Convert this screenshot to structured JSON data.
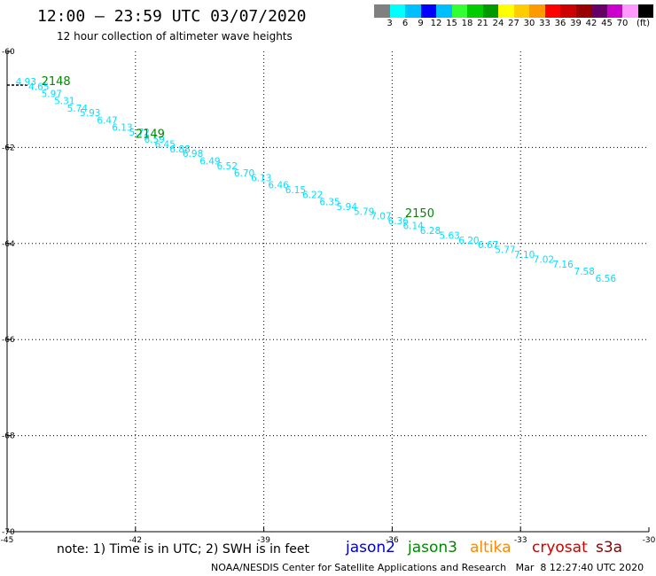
{
  "title": "12:00 – 23:59 UTC 03/07/2020",
  "subtitle": "12 hour collection of altimeter wave heights",
  "colorbar": {
    "colors": [
      "#808080",
      "#00ffff",
      "#00bfff",
      "#0000ff",
      "#00bfff",
      "#33ff33",
      "#00cc00",
      "#009900",
      "#ffff00",
      "#ffcc00",
      "#ff9900",
      "#ff0000",
      "#cc0000",
      "#990000",
      "#660066",
      "#cc00cc",
      "#ff99ff",
      "#000000"
    ],
    "labels": [
      "3",
      "6",
      "9",
      "12",
      "15",
      "18",
      "21",
      "24",
      "27",
      "30",
      "33",
      "36",
      "39",
      "42",
      "45",
      "70",
      "(ft)"
    ]
  },
  "note": "note: 1) Time is in UTC; 2) SWH is in feet",
  "legend": [
    {
      "label": "jason2",
      "color": "#0000cc"
    },
    {
      "label": "jason3",
      "color": "#008800"
    },
    {
      "label": "altika",
      "color": "#ff8800"
    },
    {
      "label": "cryosat",
      "color": "#cc0000"
    },
    {
      "label": "s3a",
      "color": "#880000"
    }
  ],
  "footer": "NOAA/NESDIS Center for Satellite Applications and Research   Mar  8 12:27:40 UTC 2020",
  "chart_data": {
    "type": "scatter",
    "xlim": [
      -45,
      -30
    ],
    "ylim": [
      -70,
      -60
    ],
    "x_ticks": [
      -45,
      -42,
      -39,
      -36,
      -33,
      -30
    ],
    "x_tick_labels": [
      "-45",
      "-42",
      "-39",
      "-36",
      "-33",
      "-30"
    ],
    "y_ticks": [
      -60,
      -62,
      -64,
      -66,
      -68,
      -70
    ],
    "y_tick_labels": [
      "-60",
      "-62",
      "-64",
      "-66",
      "-68",
      "-70"
    ],
    "grid": true,
    "point_color": "#00e0ff",
    "time_label_color": "#008800",
    "points": [
      {
        "lon": -44.8,
        "lat": -60.7,
        "label": "4.93"
      },
      {
        "lon": -44.5,
        "lat": -60.8,
        "label": "4.65"
      },
      {
        "lon": -44.2,
        "lat": -60.95,
        "label": "5.97"
      },
      {
        "lon": -43.9,
        "lat": -61.1,
        "label": "5.31"
      },
      {
        "lon": -43.6,
        "lat": -61.25,
        "label": "5.74"
      },
      {
        "lon": -43.3,
        "lat": -61.35,
        "label": "5.93"
      },
      {
        "lon": -42.9,
        "lat": -61.5,
        "label": "6.47"
      },
      {
        "lon": -42.55,
        "lat": -61.65,
        "label": "6.13"
      },
      {
        "lon": -42.15,
        "lat": -61.75,
        "label": "5.72"
      },
      {
        "lon": -41.8,
        "lat": -61.9,
        "label": "6.59"
      },
      {
        "lon": -41.55,
        "lat": -62.0,
        "label": "6.45"
      },
      {
        "lon": -41.2,
        "lat": -62.1,
        "label": "6.88"
      },
      {
        "lon": -40.9,
        "lat": -62.2,
        "label": "6.98"
      },
      {
        "lon": -40.5,
        "lat": -62.35,
        "label": "6.49"
      },
      {
        "lon": -40.1,
        "lat": -62.45,
        "label": "6.52"
      },
      {
        "lon": -39.7,
        "lat": -62.6,
        "label": "6.70"
      },
      {
        "lon": -39.3,
        "lat": -62.7,
        "label": "6.13"
      },
      {
        "lon": -38.9,
        "lat": -62.85,
        "label": "6.46"
      },
      {
        "lon": -38.5,
        "lat": -62.95,
        "label": "6.15"
      },
      {
        "lon": -38.1,
        "lat": -63.05,
        "label": "6.22"
      },
      {
        "lon": -37.7,
        "lat": -63.2,
        "label": "6.35"
      },
      {
        "lon": -37.3,
        "lat": -63.3,
        "label": "5.94"
      },
      {
        "lon": -36.9,
        "lat": -63.4,
        "label": "5.79"
      },
      {
        "lon": -36.5,
        "lat": -63.5,
        "label": "7.07"
      },
      {
        "lon": -36.1,
        "lat": -63.6,
        "label": "6.36"
      },
      {
        "lon": -35.75,
        "lat": -63.7,
        "label": "6.14"
      },
      {
        "lon": -35.35,
        "lat": -63.8,
        "label": "6.28"
      },
      {
        "lon": -34.9,
        "lat": -63.9,
        "label": "5.63"
      },
      {
        "lon": -34.45,
        "lat": -64.0,
        "label": "6.20"
      },
      {
        "lon": -34.0,
        "lat": -64.1,
        "label": "6.67"
      },
      {
        "lon": -33.6,
        "lat": -64.2,
        "label": "5.77"
      },
      {
        "lon": -33.15,
        "lat": -64.3,
        "label": "7.10"
      },
      {
        "lon": -32.7,
        "lat": -64.4,
        "label": "7.02"
      },
      {
        "lon": -32.25,
        "lat": -64.5,
        "label": "7.16"
      },
      {
        "lon": -31.75,
        "lat": -64.65,
        "label": "7.58"
      },
      {
        "lon": -31.25,
        "lat": -64.8,
        "label": "6.56"
      }
    ],
    "time_labels": [
      {
        "lon": -44.2,
        "lat": -60.7,
        "label": "2148"
      },
      {
        "lon": -42.0,
        "lat": -61.8,
        "label": "2149"
      },
      {
        "lon": -35.7,
        "lat": -63.45,
        "label": "2150"
      }
    ]
  }
}
